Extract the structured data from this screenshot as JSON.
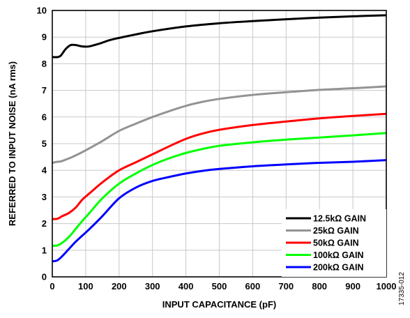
{
  "chart_data": {
    "type": "line",
    "xlabel": "INPUT CAPACITANCE (pF)",
    "ylabel": "REFERRED TO INPUT NOISE (nA rms)",
    "xlim": [
      0,
      1000
    ],
    "ylim": [
      0,
      10
    ],
    "x_ticks": [
      "0",
      "100",
      "200",
      "300",
      "400",
      "500",
      "600",
      "700",
      "800",
      "900",
      "1000"
    ],
    "y_ticks": [
      "0",
      "1",
      "2",
      "3",
      "4",
      "5",
      "6",
      "7",
      "8",
      "9",
      "10"
    ],
    "grid": true,
    "legend_position": "bottom-right",
    "figure_id": "17335-012",
    "series": [
      {
        "name": "12.5kΩ GAIN",
        "color": "#000000",
        "points": [
          [
            0,
            8.25
          ],
          [
            15,
            8.25
          ],
          [
            25,
            8.3
          ],
          [
            40,
            8.55
          ],
          [
            55,
            8.7
          ],
          [
            70,
            8.7
          ],
          [
            90,
            8.65
          ],
          [
            110,
            8.65
          ],
          [
            140,
            8.75
          ],
          [
            170,
            8.88
          ],
          [
            200,
            8.97
          ],
          [
            250,
            9.1
          ],
          [
            300,
            9.22
          ],
          [
            400,
            9.4
          ],
          [
            500,
            9.52
          ],
          [
            600,
            9.6
          ],
          [
            700,
            9.67
          ],
          [
            800,
            9.73
          ],
          [
            900,
            9.78
          ],
          [
            1000,
            9.82
          ]
        ]
      },
      {
        "name": "25kΩ GAIN",
        "color": "#939393",
        "points": [
          [
            0,
            4.28
          ],
          [
            15,
            4.32
          ],
          [
            25,
            4.33
          ],
          [
            40,
            4.4
          ],
          [
            60,
            4.5
          ],
          [
            80,
            4.62
          ],
          [
            100,
            4.75
          ],
          [
            150,
            5.1
          ],
          [
            200,
            5.48
          ],
          [
            250,
            5.75
          ],
          [
            300,
            6.0
          ],
          [
            350,
            6.22
          ],
          [
            400,
            6.42
          ],
          [
            450,
            6.57
          ],
          [
            500,
            6.68
          ],
          [
            600,
            6.83
          ],
          [
            700,
            6.93
          ],
          [
            800,
            7.02
          ],
          [
            900,
            7.08
          ],
          [
            1000,
            7.15
          ]
        ]
      },
      {
        "name": "50kΩ GAIN",
        "color": "#ff0000",
        "points": [
          [
            0,
            2.17
          ],
          [
            15,
            2.18
          ],
          [
            30,
            2.28
          ],
          [
            50,
            2.4
          ],
          [
            70,
            2.6
          ],
          [
            90,
            2.9
          ],
          [
            110,
            3.12
          ],
          [
            150,
            3.55
          ],
          [
            200,
            4.0
          ],
          [
            250,
            4.3
          ],
          [
            300,
            4.6
          ],
          [
            350,
            4.9
          ],
          [
            400,
            5.18
          ],
          [
            450,
            5.38
          ],
          [
            500,
            5.52
          ],
          [
            600,
            5.7
          ],
          [
            700,
            5.83
          ],
          [
            800,
            5.95
          ],
          [
            900,
            6.04
          ],
          [
            1000,
            6.12
          ]
        ]
      },
      {
        "name": "100kΩ GAIN",
        "color": "#00ff00",
        "points": [
          [
            0,
            1.17
          ],
          [
            15,
            1.18
          ],
          [
            30,
            1.28
          ],
          [
            50,
            1.5
          ],
          [
            70,
            1.8
          ],
          [
            90,
            2.1
          ],
          [
            110,
            2.38
          ],
          [
            150,
            2.95
          ],
          [
            200,
            3.5
          ],
          [
            250,
            3.88
          ],
          [
            300,
            4.2
          ],
          [
            350,
            4.45
          ],
          [
            400,
            4.65
          ],
          [
            450,
            4.8
          ],
          [
            500,
            4.92
          ],
          [
            600,
            5.05
          ],
          [
            700,
            5.15
          ],
          [
            800,
            5.23
          ],
          [
            900,
            5.31
          ],
          [
            1000,
            5.4
          ]
        ]
      },
      {
        "name": "200kΩ GAIN",
        "color": "#0000ff",
        "points": [
          [
            0,
            0.58
          ],
          [
            15,
            0.62
          ],
          [
            30,
            0.78
          ],
          [
            50,
            1.05
          ],
          [
            70,
            1.32
          ],
          [
            90,
            1.55
          ],
          [
            110,
            1.78
          ],
          [
            150,
            2.28
          ],
          [
            200,
            2.95
          ],
          [
            250,
            3.35
          ],
          [
            300,
            3.6
          ],
          [
            350,
            3.75
          ],
          [
            400,
            3.88
          ],
          [
            450,
            3.98
          ],
          [
            500,
            4.05
          ],
          [
            600,
            4.15
          ],
          [
            700,
            4.22
          ],
          [
            800,
            4.28
          ],
          [
            900,
            4.32
          ],
          [
            1000,
            4.38
          ]
        ]
      }
    ]
  }
}
